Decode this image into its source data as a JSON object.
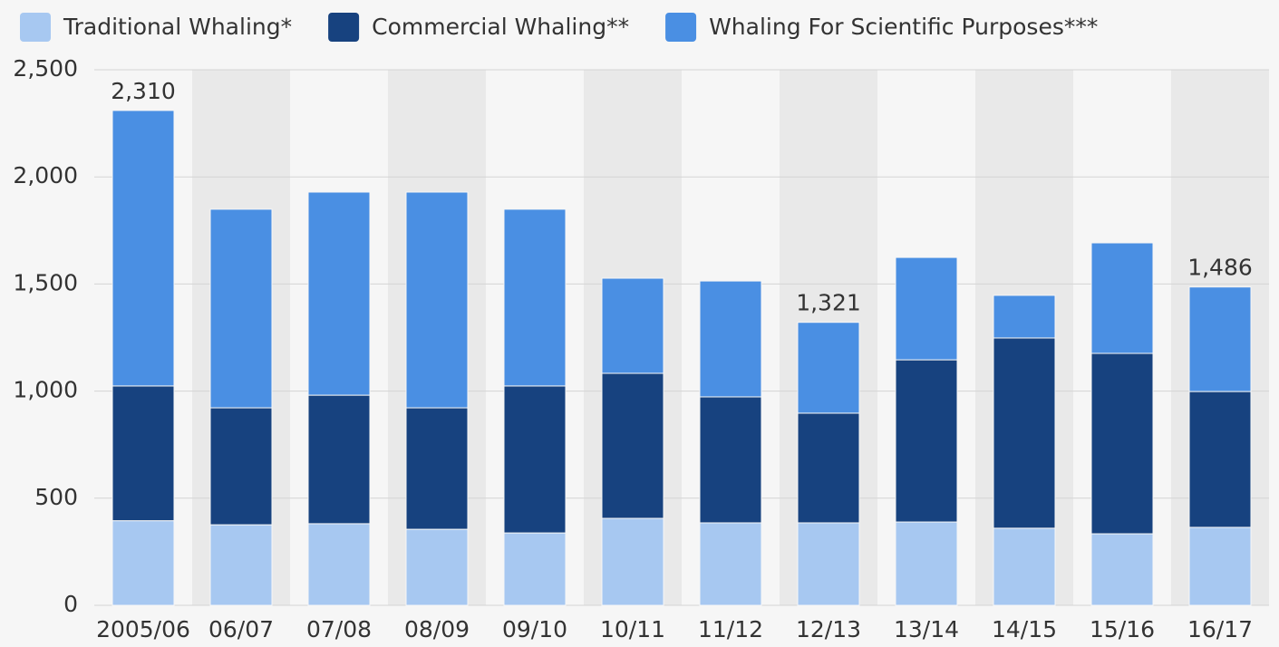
{
  "chart_data": {
    "type": "stacked_bar",
    "categories": [
      "2005/06",
      "06/07",
      "07/08",
      "08/09",
      "09/10",
      "10/11",
      "11/12",
      "12/13",
      "13/14",
      "14/15",
      "15/16",
      "16/17"
    ],
    "series": [
      {
        "name": "Traditional Whaling*",
        "color": "#a7c8f1",
        "values": [
          395,
          376,
          381,
          355,
          338,
          406,
          385,
          385,
          389,
          360,
          334,
          364
        ]
      },
      {
        "name": "Commercial Whaling**",
        "color": "#17427f",
        "values": [
          629,
          546,
          600,
          567,
          686,
          677,
          588,
          512,
          757,
          888,
          842,
          634
        ]
      },
      {
        "name": "Whaling For Scientific Purposes***",
        "color": "#4a8fe3",
        "values": [
          1286,
          927,
          948,
          1007,
          825,
          444,
          541,
          424,
          478,
          199,
          516,
          488
        ]
      }
    ],
    "annotations": [
      {
        "category": "2005/06",
        "value": 2310,
        "label": "2,310"
      },
      {
        "category": "12/13",
        "value": 1321,
        "label": "1,321"
      },
      {
        "category": "16/17",
        "value": 1486,
        "label": "1,486"
      }
    ],
    "ylim": [
      0,
      2500
    ],
    "yticks": [
      0,
      500,
      {
        "value": 1000,
        "label": "1,000"
      },
      {
        "value": 1500,
        "label": "1,500"
      },
      {
        "value": 2000,
        "label": "2,000"
      },
      {
        "value": 2500,
        "label": "2,500"
      }
    ],
    "grid": true,
    "legend": "top"
  }
}
